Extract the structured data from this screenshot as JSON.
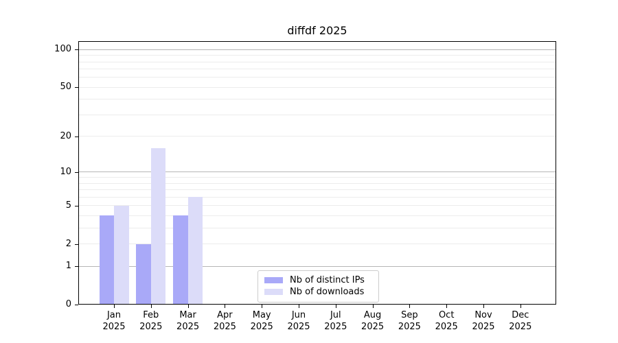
{
  "figure": {
    "title": "diffdf 2025",
    "background": "#ffffff"
  },
  "chart_data": {
    "type": "bar",
    "title": "diffdf 2025",
    "categories": [
      "Jan",
      "Feb",
      "Mar",
      "Apr",
      "May",
      "Jun",
      "Jul",
      "Aug",
      "Sep",
      "Oct",
      "Nov",
      "Dec"
    ],
    "x_year_label": "2025",
    "series": [
      {
        "name": "Nb of distinct IPs",
        "color": "#a9a9f8",
        "values": [
          4,
          2,
          4,
          0,
          0,
          0,
          0,
          0,
          0,
          0,
          0,
          0
        ]
      },
      {
        "name": "Nb of downloads",
        "color": "#dcdcf9",
        "values": [
          5,
          16,
          6,
          0,
          0,
          0,
          0,
          0,
          0,
          0,
          0,
          0
        ]
      }
    ],
    "xlabel": "",
    "ylabel": "",
    "y_axis": {
      "scale": "log10(1+x)",
      "tick_values": [
        0,
        1,
        2,
        5,
        10,
        20,
        50,
        100
      ],
      "tick_labels": [
        "0",
        "1",
        "2",
        "5",
        "10",
        "20",
        "50",
        "100"
      ],
      "major_gridlines": [
        1,
        10,
        100
      ],
      "minor_gridlines": [
        2,
        3,
        4,
        5,
        6,
        7,
        8,
        9,
        20,
        30,
        40,
        50,
        60,
        70,
        80,
        90
      ],
      "ylim": [
        0,
        115
      ]
    },
    "grid": "on",
    "legend": {
      "position": "lower center",
      "entries": [
        "Nb of distinct IPs",
        "Nb of downloads"
      ]
    },
    "colors": {
      "major_grid": "#b5b5b5",
      "minor_grid": "#ececec",
      "axis": "#000000",
      "background": "#ffffff"
    }
  }
}
